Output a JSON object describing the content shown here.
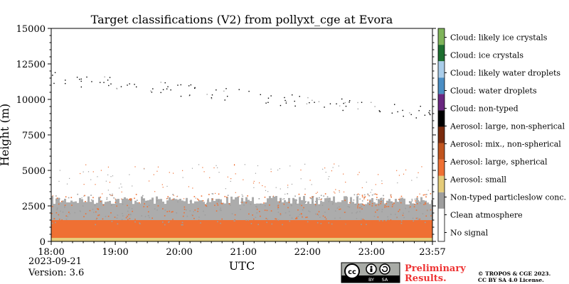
{
  "chart_data": {
    "type": "heatmap",
    "title": "Target classifications (V2) from pollyxt_cge at Evora",
    "xlabel": "UTC",
    "ylabel": "Height (m)",
    "x_ticks": [
      "18:00",
      "19:00",
      "20:00",
      "21:00",
      "22:00",
      "23:00",
      "23:57"
    ],
    "y_ticks": [
      "0",
      "2500",
      "5000",
      "7500",
      "10000",
      "12500",
      "15000"
    ],
    "x_range": [
      "18:00",
      "23:57"
    ],
    "ylim": [
      0,
      15000
    ],
    "legend_position": "right",
    "classes": [
      {
        "label": "No signal",
        "color": "#ffffff"
      },
      {
        "label": "Clean atmosphere",
        "color": "#ffffff"
      },
      {
        "label": "Non-typed particleslow conc.",
        "color": "#9e9e9e"
      },
      {
        "label": "Aerosol: small",
        "color": "#e5cc7a"
      },
      {
        "label": "Aerosol: large, spherical",
        "color": "#ef7033"
      },
      {
        "label": "Aerosol: mix., non-spherical",
        "color": "#c0541e"
      },
      {
        "label": "Aerosol: large, non-spherical",
        "color": "#7a2b0d"
      },
      {
        "label": "Cloud: non-typed",
        "color": "#000000"
      },
      {
        "label": "Cloud: water droplets",
        "color": "#6a2781"
      },
      {
        "label": "Cloud: likely water droplets",
        "color": "#4a8ec4"
      },
      {
        "label": "Cloud: ice crystals",
        "color": "#a9cdea"
      },
      {
        "label": "Cloud: likely ice crystals",
        "color": "#1d6e2f"
      },
      {
        "label": "Cloud: likely ice crystals",
        "color": "#7fb45a"
      }
    ],
    "layers": [
      {
        "class": "Aerosol: small",
        "height_range": [
          0,
          250
        ]
      },
      {
        "class": "Aerosol: large, spherical",
        "height_range": [
          250,
          1500
        ]
      },
      {
        "class": "Non-typed particleslow conc.",
        "height_range": [
          1500,
          3000
        ]
      },
      {
        "class": "Cloud: non-typed",
        "height_range": [
          9500,
          12000
        ],
        "note": "sparse"
      }
    ]
  },
  "footer": {
    "date": "2023-09-21",
    "version": "Version: 3.6",
    "preliminary_line1": "Preliminary",
    "preliminary_line2": "Results.",
    "copyright_line1": "© TROPOS & CGE 2023.",
    "copyright_line2": "CC BY SA 4.0 License.",
    "license_badge": {
      "by": "BY",
      "sa": "SA",
      "cc": "cc"
    }
  }
}
